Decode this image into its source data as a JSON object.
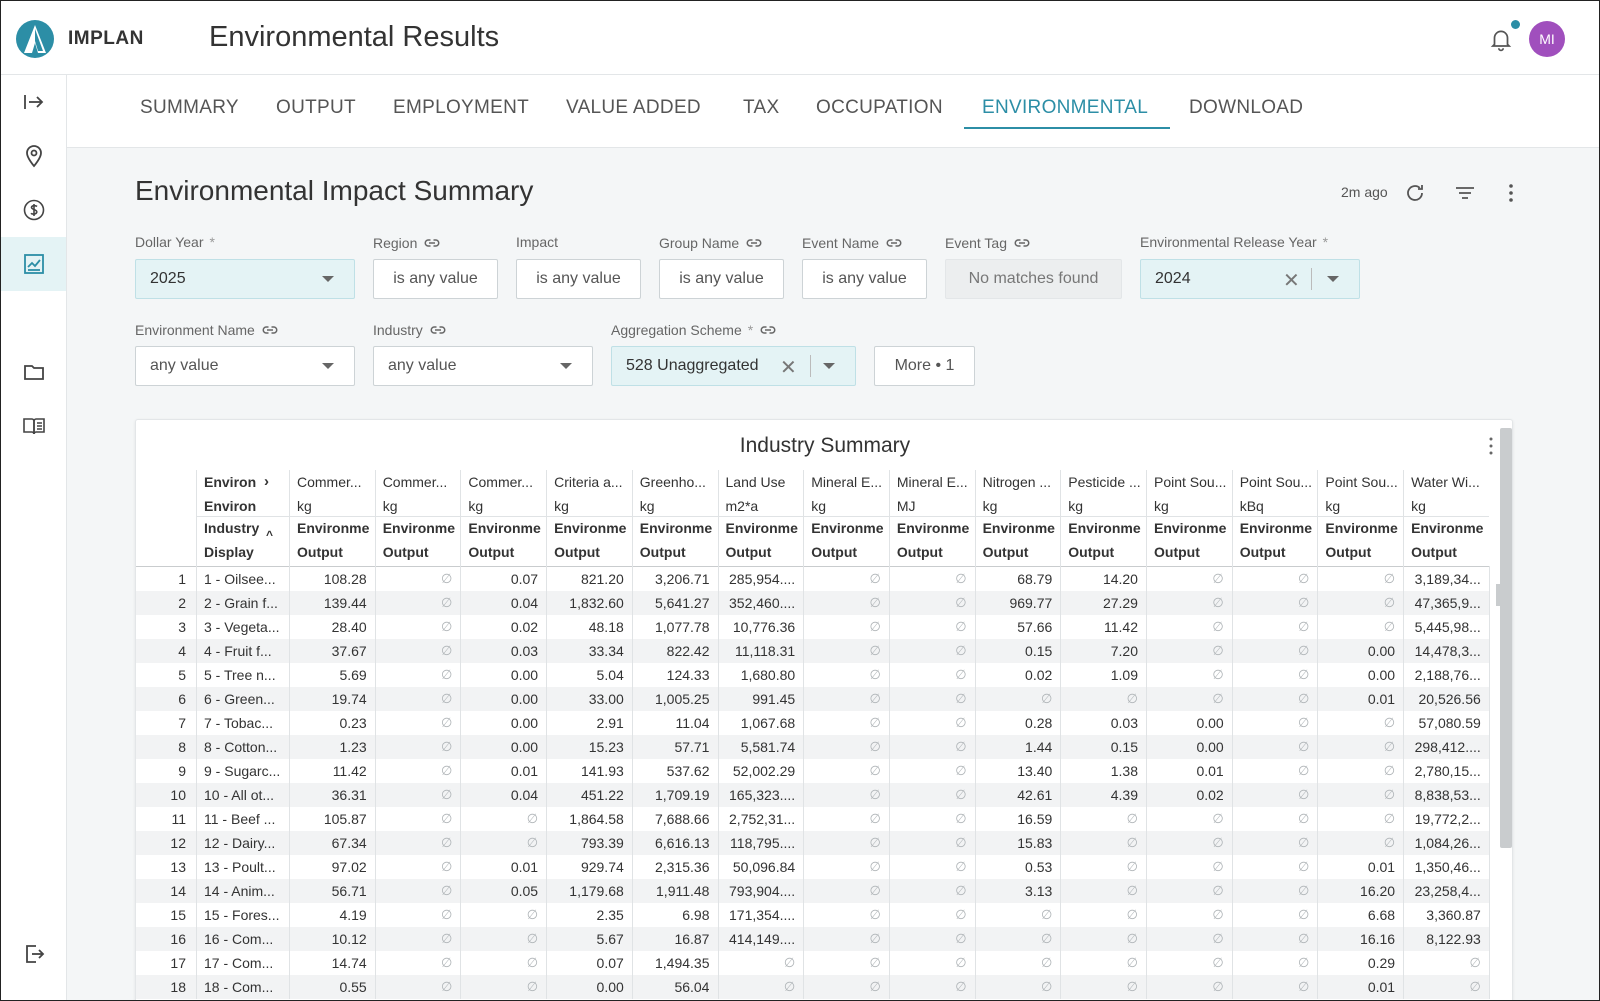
{
  "app": {
    "brand": "IMPLAN",
    "page_title": "Environmental Results",
    "avatar_initials": "MI",
    "accent": "#2c8ea6"
  },
  "tabs": [
    "SUMMARY",
    "OUTPUT",
    "EMPLOYMENT",
    "VALUE ADDED",
    "TAX",
    "OCCUPATION",
    "ENVIRONMENTAL",
    "DOWNLOAD"
  ],
  "active_tab": "ENVIRONMENTAL",
  "section": {
    "title": "Environmental Impact Summary",
    "updated": "2m ago"
  },
  "filters": {
    "dollar_year": {
      "label": "Dollar Year",
      "required": "*",
      "value": "2025"
    },
    "region": {
      "label": "Region",
      "value": "is any value"
    },
    "impact": {
      "label": "Impact",
      "value": "is any value"
    },
    "group_name": {
      "label": "Group Name",
      "value": "is any value"
    },
    "event_name": {
      "label": "Event Name",
      "value": "is any value"
    },
    "event_tag": {
      "label": "Event Tag",
      "value": "No matches found"
    },
    "env_release_year": {
      "label": "Environmental Release Year",
      "required": "*",
      "value": "2024"
    },
    "environment_name": {
      "label": "Environment Name",
      "value": "any value"
    },
    "industry": {
      "label": "Industry",
      "value": "any value"
    },
    "aggregation_scheme": {
      "label": "Aggregation Scheme",
      "required": "*",
      "value": "528 Unaggregated"
    },
    "more": "More • 1"
  },
  "table": {
    "title": "Industry Summary",
    "pivot_header": {
      "row1": "Environ",
      "row2": "Environ",
      "row3": "Industry",
      "row4": "Display"
    },
    "columns": [
      {
        "name": "Commer...",
        "unit": "kg",
        "measure": "Environme",
        "sub": "Output"
      },
      {
        "name": "Commer...",
        "unit": "kg",
        "measure": "Environme",
        "sub": "Output"
      },
      {
        "name": "Commer...",
        "unit": "kg",
        "measure": "Environme",
        "sub": "Output"
      },
      {
        "name": "Criteria a...",
        "unit": "kg",
        "measure": "Environme",
        "sub": "Output"
      },
      {
        "name": "Greenho...",
        "unit": "kg",
        "measure": "Environme",
        "sub": "Output"
      },
      {
        "name": "Land Use",
        "unit": "m2*a",
        "measure": "Environme",
        "sub": "Output"
      },
      {
        "name": "Mineral E...",
        "unit": "kg",
        "measure": "Environme",
        "sub": "Output"
      },
      {
        "name": "Mineral E...",
        "unit": "MJ",
        "measure": "Environme",
        "sub": "Output"
      },
      {
        "name": "Nitrogen ...",
        "unit": "kg",
        "measure": "Environme",
        "sub": "Output"
      },
      {
        "name": "Pesticide ...",
        "unit": "kg",
        "measure": "Environme",
        "sub": "Output"
      },
      {
        "name": "Point Sou...",
        "unit": "kg",
        "measure": "Environme",
        "sub": "Output"
      },
      {
        "name": "Point Sou...",
        "unit": "kBq",
        "measure": "Environme",
        "sub": "Output"
      },
      {
        "name": "Point Sou...",
        "unit": "kg",
        "measure": "Environme",
        "sub": "Output"
      },
      {
        "name": "Water Wi...",
        "unit": "kg",
        "measure": "Environme",
        "sub": "Output"
      }
    ],
    "rows": [
      [
        "1",
        "1 - Oilsee...",
        "108.28",
        "∅",
        "0.07",
        "821.20",
        "3,206.71",
        "285,954....",
        "∅",
        "∅",
        "68.79",
        "14.20",
        "∅",
        "∅",
        "∅",
        "3,189,34..."
      ],
      [
        "2",
        "2 - Grain f...",
        "139.44",
        "∅",
        "0.04",
        "1,832.60",
        "5,641.27",
        "352,460....",
        "∅",
        "∅",
        "969.77",
        "27.29",
        "∅",
        "∅",
        "∅",
        "47,365,9..."
      ],
      [
        "3",
        "3 - Vegeta...",
        "28.40",
        "∅",
        "0.02",
        "48.18",
        "1,077.78",
        "10,776.36",
        "∅",
        "∅",
        "57.66",
        "11.42",
        "∅",
        "∅",
        "∅",
        "5,445,98..."
      ],
      [
        "4",
        "4 - Fruit f...",
        "37.67",
        "∅",
        "0.03",
        "33.34",
        "822.42",
        "11,118.31",
        "∅",
        "∅",
        "0.15",
        "7.20",
        "∅",
        "∅",
        "0.00",
        "14,478,3..."
      ],
      [
        "5",
        "5 - Tree n...",
        "5.69",
        "∅",
        "0.00",
        "5.04",
        "124.33",
        "1,680.80",
        "∅",
        "∅",
        "0.02",
        "1.09",
        "∅",
        "∅",
        "0.00",
        "2,188,76..."
      ],
      [
        "6",
        "6 - Green...",
        "19.74",
        "∅",
        "0.00",
        "33.00",
        "1,005.25",
        "991.45",
        "∅",
        "∅",
        "∅",
        "∅",
        "∅",
        "∅",
        "0.01",
        "20,526.56"
      ],
      [
        "7",
        "7 - Tobac...",
        "0.23",
        "∅",
        "0.00",
        "2.91",
        "11.04",
        "1,067.68",
        "∅",
        "∅",
        "0.28",
        "0.03",
        "0.00",
        "∅",
        "∅",
        "57,080.59"
      ],
      [
        "8",
        "8 - Cotton...",
        "1.23",
        "∅",
        "0.00",
        "15.23",
        "57.71",
        "5,581.74",
        "∅",
        "∅",
        "1.44",
        "0.15",
        "0.00",
        "∅",
        "∅",
        "298,412...."
      ],
      [
        "9",
        "9 - Sugarc...",
        "11.42",
        "∅",
        "0.01",
        "141.93",
        "537.62",
        "52,002.29",
        "∅",
        "∅",
        "13.40",
        "1.38",
        "0.01",
        "∅",
        "∅",
        "2,780,15..."
      ],
      [
        "10",
        "10 - All ot...",
        "36.31",
        "∅",
        "0.04",
        "451.22",
        "1,709.19",
        "165,323....",
        "∅",
        "∅",
        "42.61",
        "4.39",
        "0.02",
        "∅",
        "∅",
        "8,838,53..."
      ],
      [
        "11",
        "11 - Beef ...",
        "105.87",
        "∅",
        "∅",
        "1,864.58",
        "7,688.66",
        "2,752,31...",
        "∅",
        "∅",
        "16.59",
        "∅",
        "∅",
        "∅",
        "∅",
        "19,772,2..."
      ],
      [
        "12",
        "12 - Dairy...",
        "67.34",
        "∅",
        "∅",
        "793.39",
        "6,616.13",
        "118,795....",
        "∅",
        "∅",
        "15.83",
        "∅",
        "∅",
        "∅",
        "∅",
        "1,084,26..."
      ],
      [
        "13",
        "13 - Poult...",
        "97.02",
        "∅",
        "0.01",
        "929.74",
        "2,315.36",
        "50,096.84",
        "∅",
        "∅",
        "0.53",
        "∅",
        "∅",
        "∅",
        "0.01",
        "1,350,46..."
      ],
      [
        "14",
        "14 - Anim...",
        "56.71",
        "∅",
        "0.05",
        "1,179.68",
        "1,911.48",
        "793,904....",
        "∅",
        "∅",
        "3.13",
        "∅",
        "∅",
        "∅",
        "16.20",
        "23,258,4..."
      ],
      [
        "15",
        "15 - Fores...",
        "4.19",
        "∅",
        "∅",
        "2.35",
        "6.98",
        "171,354....",
        "∅",
        "∅",
        "∅",
        "∅",
        "∅",
        "∅",
        "6.68",
        "3,360.87"
      ],
      [
        "16",
        "16 - Com...",
        "10.12",
        "∅",
        "∅",
        "5.67",
        "16.87",
        "414,149....",
        "∅",
        "∅",
        "∅",
        "∅",
        "∅",
        "∅",
        "16.16",
        "8,122.93"
      ],
      [
        "17",
        "17 - Com...",
        "14.74",
        "∅",
        "∅",
        "0.07",
        "1,494.35",
        "∅",
        "∅",
        "∅",
        "∅",
        "∅",
        "∅",
        "∅",
        "0.29",
        "∅"
      ],
      [
        "18",
        "18 - Com...",
        "0.55",
        "∅",
        "∅",
        "0.00",
        "56.04",
        "∅",
        "∅",
        "∅",
        "∅",
        "∅",
        "∅",
        "∅",
        "0.01",
        "∅"
      ]
    ]
  },
  "icons": {
    "rail": [
      "expand-arrow-icon",
      "location-pin-icon",
      "dollar-icon",
      "chart-icon",
      "folder-icon",
      "book-icon",
      "logout-icon"
    ],
    "header": [
      "bell-icon",
      "refresh-icon",
      "filter-icon",
      "more-vertical-icon",
      "link-icon",
      "clear-icon",
      "chevron-down-icon"
    ]
  }
}
